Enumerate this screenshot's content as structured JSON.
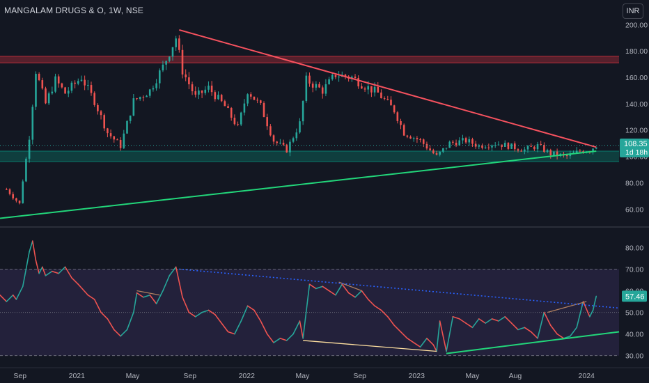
{
  "header": {
    "title": "MANGALAM DRUGS & O, 1W, NSE",
    "currency_button": "INR"
  },
  "price_badge": {
    "value": "108.35",
    "countdown": "1d 18h",
    "color": "#26a69a"
  },
  "rsi_badge": {
    "value": "57.46",
    "color": "#26a69a"
  },
  "colors": {
    "up": "#26a69a",
    "down": "#ef5350",
    "resistance_line": "#f7525f",
    "support_line": "#22d67a",
    "rsi_line": "#ef5350",
    "rsi_band": "#7e57c2",
    "rsi_trend_dotted": "#2962ff",
    "divergence_bear": "#b08060",
    "divergence_bull": "#ffe0a0"
  },
  "chart_data": [
    {
      "type": "candlestick",
      "title": "MANGALAM DRUGS & O, 1W, NSE",
      "ylim": [
        48,
        206
      ],
      "y_ticks": [
        60,
        80,
        100,
        120,
        140,
        160,
        180,
        200
      ],
      "y_tick_labels": [
        "60.00",
        "80.00",
        "100.00",
        "120.00",
        "140.00",
        "160.00",
        "180.00",
        "200.00"
      ],
      "last_value": 108.35,
      "zones": [
        {
          "name": "resistance-zone",
          "from": 171,
          "to": 176,
          "color": "#f23645"
        },
        {
          "name": "support-zone",
          "from": 96,
          "to": 104,
          "color": "#089981"
        }
      ],
      "trendlines": [
        {
          "name": "descending-resistance",
          "from": {
            "x": "2021-08-09",
            "y": 196
          },
          "to": {
            "x": "2024-01-22",
            "y": 107
          }
        },
        {
          "name": "ascending-support",
          "from": {
            "x": "2020-07-20",
            "y": 53
          },
          "to": {
            "x": "2024-01-22",
            "y": 104
          }
        }
      ],
      "close_series": [
        {
          "x": "2020-08-03",
          "y": 75
        },
        {
          "x": "2020-08-31",
          "y": 64
        },
        {
          "x": "2020-09-07",
          "y": 82
        },
        {
          "x": "2020-09-14",
          "y": 98
        },
        {
          "x": "2020-09-21",
          "y": 115
        },
        {
          "x": "2020-10-05",
          "y": 165
        },
        {
          "x": "2020-10-26",
          "y": 140
        },
        {
          "x": "2020-11-16",
          "y": 158
        },
        {
          "x": "2020-12-07",
          "y": 148
        },
        {
          "x": "2021-01-11",
          "y": 160
        },
        {
          "x": "2021-02-08",
          "y": 142
        },
        {
          "x": "2021-03-08",
          "y": 118
        },
        {
          "x": "2021-04-05",
          "y": 108
        },
        {
          "x": "2021-05-03",
          "y": 142
        },
        {
          "x": "2021-06-07",
          "y": 150
        },
        {
          "x": "2021-07-05",
          "y": 168
        },
        {
          "x": "2021-08-02",
          "y": 190
        },
        {
          "x": "2021-08-16",
          "y": 165
        },
        {
          "x": "2021-09-13",
          "y": 145
        },
        {
          "x": "2021-10-11",
          "y": 152
        },
        {
          "x": "2021-11-15",
          "y": 138
        },
        {
          "x": "2021-12-13",
          "y": 122
        },
        {
          "x": "2022-01-03",
          "y": 150
        },
        {
          "x": "2022-01-31",
          "y": 138
        },
        {
          "x": "2022-02-28",
          "y": 112
        },
        {
          "x": "2022-03-28",
          "y": 105
        },
        {
          "x": "2022-04-25",
          "y": 125
        },
        {
          "x": "2022-05-09",
          "y": 158
        },
        {
          "x": "2022-06-13",
          "y": 150
        },
        {
          "x": "2022-07-11",
          "y": 162
        },
        {
          "x": "2022-08-15",
          "y": 160
        },
        {
          "x": "2022-09-05",
          "y": 155
        },
        {
          "x": "2022-10-10",
          "y": 148
        },
        {
          "x": "2022-11-14",
          "y": 135
        },
        {
          "x": "2022-12-05",
          "y": 118
        },
        {
          "x": "2023-01-09",
          "y": 112
        },
        {
          "x": "2023-02-13",
          "y": 100
        },
        {
          "x": "2023-03-13",
          "y": 110
        },
        {
          "x": "2023-04-17",
          "y": 112
        },
        {
          "x": "2023-05-15",
          "y": 108
        },
        {
          "x": "2023-06-19",
          "y": 110
        },
        {
          "x": "2023-07-17",
          "y": 108
        },
        {
          "x": "2023-08-21",
          "y": 105
        },
        {
          "x": "2023-09-18",
          "y": 108
        },
        {
          "x": "2023-10-16",
          "y": 102
        },
        {
          "x": "2023-11-20",
          "y": 100
        },
        {
          "x": "2023-12-18",
          "y": 104
        },
        {
          "x": "2024-01-08",
          "y": 105
        },
        {
          "x": "2024-01-22",
          "y": 108.35
        }
      ]
    },
    {
      "type": "line",
      "name": "RSI",
      "ylim": [
        27,
        84
      ],
      "y_ticks": [
        30,
        40,
        50,
        60,
        70,
        80
      ],
      "y_tick_labels": [
        "30.00",
        "40.00",
        "50.00",
        "60.00",
        "70.00",
        "80.00"
      ],
      "band": [
        30,
        70
      ],
      "levels": [
        30,
        50,
        70
      ],
      "last_value": 57.46,
      "divergence_lines": [
        {
          "name": "bearish-div-1",
          "from": {
            "x": "2021-05-10",
            "y": 60
          },
          "to": {
            "x": "2021-06-28",
            "y": 58
          }
        },
        {
          "name": "bearish-div-2",
          "from": {
            "x": "2022-07-18",
            "y": 64
          },
          "to": {
            "x": "2022-09-05",
            "y": 60
          }
        },
        {
          "name": "bearish-div-3",
          "from": {
            "x": "2023-10-09",
            "y": 50
          },
          "to": {
            "x": "2024-01-01",
            "y": 55
          }
        },
        {
          "name": "bullish-div-1",
          "from": {
            "x": "2022-05-02",
            "y": 37
          },
          "to": {
            "x": "2023-02-13",
            "y": 32
          }
        }
      ],
      "rsi_trendlines": [
        {
          "name": "rsi-falling-dotted",
          "from": {
            "x": "2021-08-09",
            "y": 70
          },
          "to": {
            "x": "2024-03-11",
            "y": 52
          }
        },
        {
          "name": "rsi-rising-support",
          "from": {
            "x": "2023-03-06",
            "y": 31
          },
          "to": {
            "x": "2024-03-11",
            "y": 41
          }
        }
      ],
      "series": [
        {
          "x": "2020-07-20",
          "y": 58
        },
        {
          "x": "2020-08-03",
          "y": 55
        },
        {
          "x": "2020-08-17",
          "y": 58
        },
        {
          "x": "2020-08-24",
          "y": 56
        },
        {
          "x": "2020-09-07",
          "y": 62
        },
        {
          "x": "2020-09-14",
          "y": 70
        },
        {
          "x": "2020-09-21",
          "y": 78
        },
        {
          "x": "2020-09-28",
          "y": 83
        },
        {
          "x": "2020-10-05",
          "y": 74
        },
        {
          "x": "2020-10-12",
          "y": 68
        },
        {
          "x": "2020-10-19",
          "y": 71
        },
        {
          "x": "2020-10-26",
          "y": 67
        },
        {
          "x": "2020-11-09",
          "y": 69
        },
        {
          "x": "2020-11-23",
          "y": 68
        },
        {
          "x": "2020-12-07",
          "y": 71
        },
        {
          "x": "2020-12-21",
          "y": 66
        },
        {
          "x": "2021-01-04",
          "y": 63
        },
        {
          "x": "2021-01-25",
          "y": 58
        },
        {
          "x": "2021-02-08",
          "y": 56
        },
        {
          "x": "2021-02-22",
          "y": 50
        },
        {
          "x": "2021-03-08",
          "y": 47
        },
        {
          "x": "2021-03-22",
          "y": 42
        },
        {
          "x": "2021-04-05",
          "y": 39
        },
        {
          "x": "2021-04-19",
          "y": 42
        },
        {
          "x": "2021-05-03",
          "y": 50
        },
        {
          "x": "2021-05-10",
          "y": 59
        },
        {
          "x": "2021-05-24",
          "y": 57
        },
        {
          "x": "2021-06-07",
          "y": 58
        },
        {
          "x": "2021-06-21",
          "y": 54
        },
        {
          "x": "2021-07-05",
          "y": 60
        },
        {
          "x": "2021-07-19",
          "y": 67
        },
        {
          "x": "2021-08-02",
          "y": 71
        },
        {
          "x": "2021-08-16",
          "y": 57
        },
        {
          "x": "2021-08-30",
          "y": 50
        },
        {
          "x": "2021-09-13",
          "y": 48
        },
        {
          "x": "2021-09-27",
          "y": 50
        },
        {
          "x": "2021-10-11",
          "y": 51
        },
        {
          "x": "2021-10-25",
          "y": 49
        },
        {
          "x": "2021-11-08",
          "y": 45
        },
        {
          "x": "2021-11-22",
          "y": 41
        },
        {
          "x": "2021-12-06",
          "y": 40
        },
        {
          "x": "2021-12-20",
          "y": 46
        },
        {
          "x": "2022-01-03",
          "y": 53
        },
        {
          "x": "2022-01-17",
          "y": 51
        },
        {
          "x": "2022-01-31",
          "y": 46
        },
        {
          "x": "2022-02-14",
          "y": 40
        },
        {
          "x": "2022-02-28",
          "y": 36
        },
        {
          "x": "2022-03-14",
          "y": 38
        },
        {
          "x": "2022-03-28",
          "y": 37
        },
        {
          "x": "2022-04-11",
          "y": 40
        },
        {
          "x": "2022-04-25",
          "y": 46
        },
        {
          "x": "2022-05-02",
          "y": 38
        },
        {
          "x": "2022-05-16",
          "y": 63
        },
        {
          "x": "2022-05-30",
          "y": 61
        },
        {
          "x": "2022-06-13",
          "y": 62
        },
        {
          "x": "2022-06-27",
          "y": 60
        },
        {
          "x": "2022-07-11",
          "y": 58
        },
        {
          "x": "2022-07-25",
          "y": 63
        },
        {
          "x": "2022-08-08",
          "y": 59
        },
        {
          "x": "2022-08-22",
          "y": 57
        },
        {
          "x": "2022-09-05",
          "y": 60
        },
        {
          "x": "2022-09-19",
          "y": 56
        },
        {
          "x": "2022-10-03",
          "y": 53
        },
        {
          "x": "2022-10-17",
          "y": 51
        },
        {
          "x": "2022-10-31",
          "y": 48
        },
        {
          "x": "2022-11-14",
          "y": 44
        },
        {
          "x": "2022-11-28",
          "y": 41
        },
        {
          "x": "2022-12-12",
          "y": 38
        },
        {
          "x": "2022-12-26",
          "y": 36
        },
        {
          "x": "2023-01-09",
          "y": 34
        },
        {
          "x": "2023-01-23",
          "y": 38
        },
        {
          "x": "2023-02-06",
          "y": 35
        },
        {
          "x": "2023-02-13",
          "y": 32
        },
        {
          "x": "2023-02-20",
          "y": 46
        },
        {
          "x": "2023-03-06",
          "y": 32
        },
        {
          "x": "2023-03-20",
          "y": 48
        },
        {
          "x": "2023-04-03",
          "y": 47
        },
        {
          "x": "2023-04-17",
          "y": 45
        },
        {
          "x": "2023-05-01",
          "y": 43
        },
        {
          "x": "2023-05-15",
          "y": 47
        },
        {
          "x": "2023-05-29",
          "y": 45
        },
        {
          "x": "2023-06-12",
          "y": 47
        },
        {
          "x": "2023-06-26",
          "y": 46
        },
        {
          "x": "2023-07-10",
          "y": 48
        },
        {
          "x": "2023-07-24",
          "y": 45
        },
        {
          "x": "2023-08-07",
          "y": 42
        },
        {
          "x": "2023-08-21",
          "y": 43
        },
        {
          "x": "2023-09-04",
          "y": 41
        },
        {
          "x": "2023-09-18",
          "y": 38
        },
        {
          "x": "2023-10-02",
          "y": 50
        },
        {
          "x": "2023-10-16",
          "y": 44
        },
        {
          "x": "2023-10-30",
          "y": 40
        },
        {
          "x": "2023-11-13",
          "y": 38
        },
        {
          "x": "2023-11-27",
          "y": 39
        },
        {
          "x": "2023-12-11",
          "y": 43
        },
        {
          "x": "2023-12-25",
          "y": 55
        },
        {
          "x": "2024-01-08",
          "y": 48
        },
        {
          "x": "2024-01-15",
          "y": 51
        },
        {
          "x": "2024-01-22",
          "y": 57.46
        }
      ]
    }
  ],
  "x_axis": {
    "ticks": [
      {
        "label": "Sep",
        "date": "2020-09-01"
      },
      {
        "label": "2021",
        "date": "2021-01-01"
      },
      {
        "label": "May",
        "date": "2021-05-01"
      },
      {
        "label": "Sep",
        "date": "2021-09-01"
      },
      {
        "label": "2022",
        "date": "2022-01-01"
      },
      {
        "label": "May",
        "date": "2022-05-01"
      },
      {
        "label": "Sep",
        "date": "2022-09-01"
      },
      {
        "label": "2023",
        "date": "2023-01-01"
      },
      {
        "label": "May",
        "date": "2023-05-01"
      },
      {
        "label": "Aug",
        "date": "2023-08-01"
      },
      {
        "label": "2024",
        "date": "2024-01-01"
      }
    ]
  }
}
